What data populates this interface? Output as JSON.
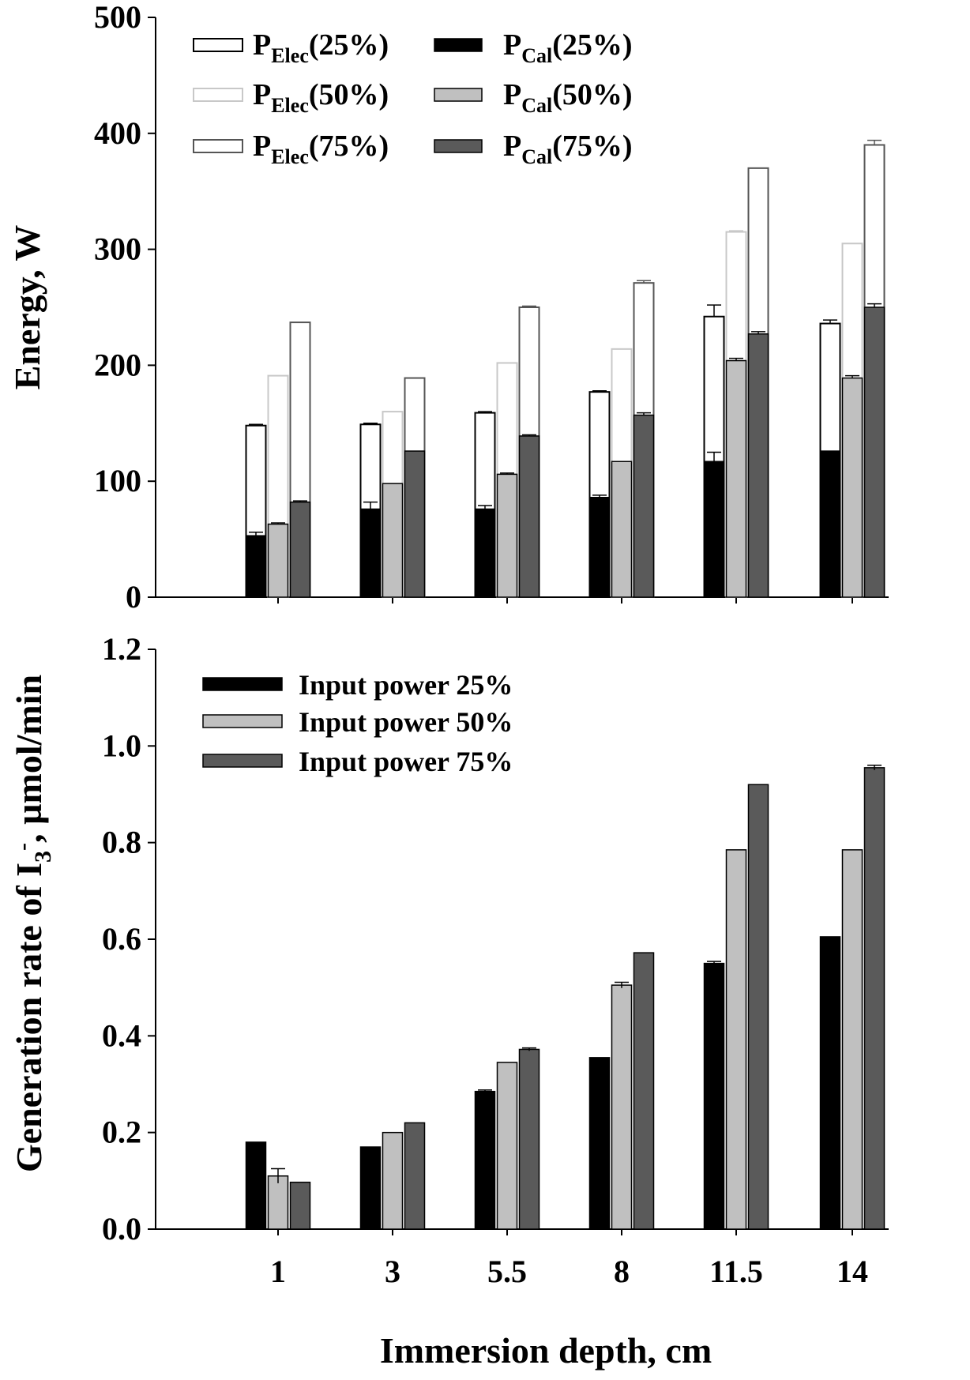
{
  "chart_data": [
    {
      "type": "bar",
      "stacked_overlay": true,
      "ylabel": "Energy, W",
      "ylim": [
        0,
        500
      ],
      "yticks": [
        0,
        100,
        200,
        300,
        400,
        500
      ],
      "categories": [
        "1",
        "3",
        "5.5",
        "8",
        "11.5",
        "14"
      ],
      "series": [
        {
          "name": "P_Elec(25%)",
          "legend_main": "P",
          "legend_sub": "Elec",
          "legend_tail": "(25%)",
          "kind": "outline",
          "color": "#000000",
          "values": [
            148,
            149,
            159,
            177,
            242,
            236
          ],
          "errors": [
            1,
            1,
            1,
            1,
            10,
            3
          ]
        },
        {
          "name": "P_Elec(50%)",
          "legend_main": "P",
          "legend_sub": "Elec",
          "legend_tail": "(50%)",
          "kind": "outline",
          "color": "#c8c8c8",
          "values": [
            191,
            160,
            202,
            214,
            315,
            305
          ],
          "errors": [
            0,
            0,
            0,
            0,
            1,
            0
          ]
        },
        {
          "name": "P_Elec(75%)",
          "legend_main": "P",
          "legend_sub": "Elec",
          "legend_tail": "(75%)",
          "kind": "outline",
          "color": "#555555",
          "values": [
            237,
            189,
            250,
            271,
            370,
            390
          ],
          "errors": [
            0,
            0,
            1,
            2,
            0,
            4
          ]
        },
        {
          "name": "P_Cal(25%)",
          "legend_main": "P",
          "legend_sub": "Cal",
          "legend_tail": "(25%)",
          "kind": "fill",
          "color": "#000000",
          "values": [
            53,
            76,
            76,
            86,
            117,
            126
          ],
          "errors": [
            3,
            6,
            3,
            2,
            8,
            0
          ]
        },
        {
          "name": "P_Cal(50%)",
          "legend_main": "P",
          "legend_sub": "Cal",
          "legend_tail": "(50%)",
          "kind": "fill",
          "color": "#c0c0c0",
          "values": [
            63,
            98,
            106,
            117,
            204,
            189
          ],
          "errors": [
            1,
            0,
            1,
            0,
            2,
            2
          ]
        },
        {
          "name": "P_Cal(75%)",
          "legend_main": "P",
          "legend_sub": "Cal",
          "legend_tail": "(75%)",
          "kind": "fill",
          "color": "#5a5a5a",
          "values": [
            82,
            126,
            139,
            157,
            227,
            250
          ],
          "errors": [
            1,
            0,
            1,
            2,
            2,
            3
          ]
        }
      ]
    },
    {
      "type": "bar",
      "ylabel_main": "Generation rate of I",
      "ylabel_sub": "3",
      "ylabel_sup": "-",
      "ylabel_tail": ", µmol/min",
      "xlabel": "Immersion depth, cm",
      "ylim": [
        0,
        1.2
      ],
      "yticks": [
        "0.0",
        "0.2",
        "0.4",
        "0.6",
        "0.8",
        "1.0",
        "1.2"
      ],
      "categories": [
        "1",
        "3",
        "5.5",
        "8",
        "11.5",
        "14"
      ],
      "series": [
        {
          "name": "Input power 25%",
          "color": "#000000",
          "values": [
            0.18,
            0.17,
            0.285,
            0.355,
            0.55,
            0.605
          ],
          "errors": [
            0,
            0,
            0.003,
            0,
            0.004,
            0
          ]
        },
        {
          "name": "Input power 50%",
          "color": "#c0c0c0",
          "values": [
            0.11,
            0.2,
            0.345,
            0.505,
            0.785,
            0.785
          ],
          "errors": [
            0.015,
            0,
            0,
            0.006,
            0,
            0
          ]
        },
        {
          "name": "Input power 75%",
          "color": "#5a5a5a",
          "values": [
            0.097,
            0.22,
            0.372,
            0.572,
            0.92,
            0.955
          ],
          "errors": [
            0,
            0,
            0.003,
            0,
            0,
            0.005
          ]
        }
      ]
    }
  ]
}
